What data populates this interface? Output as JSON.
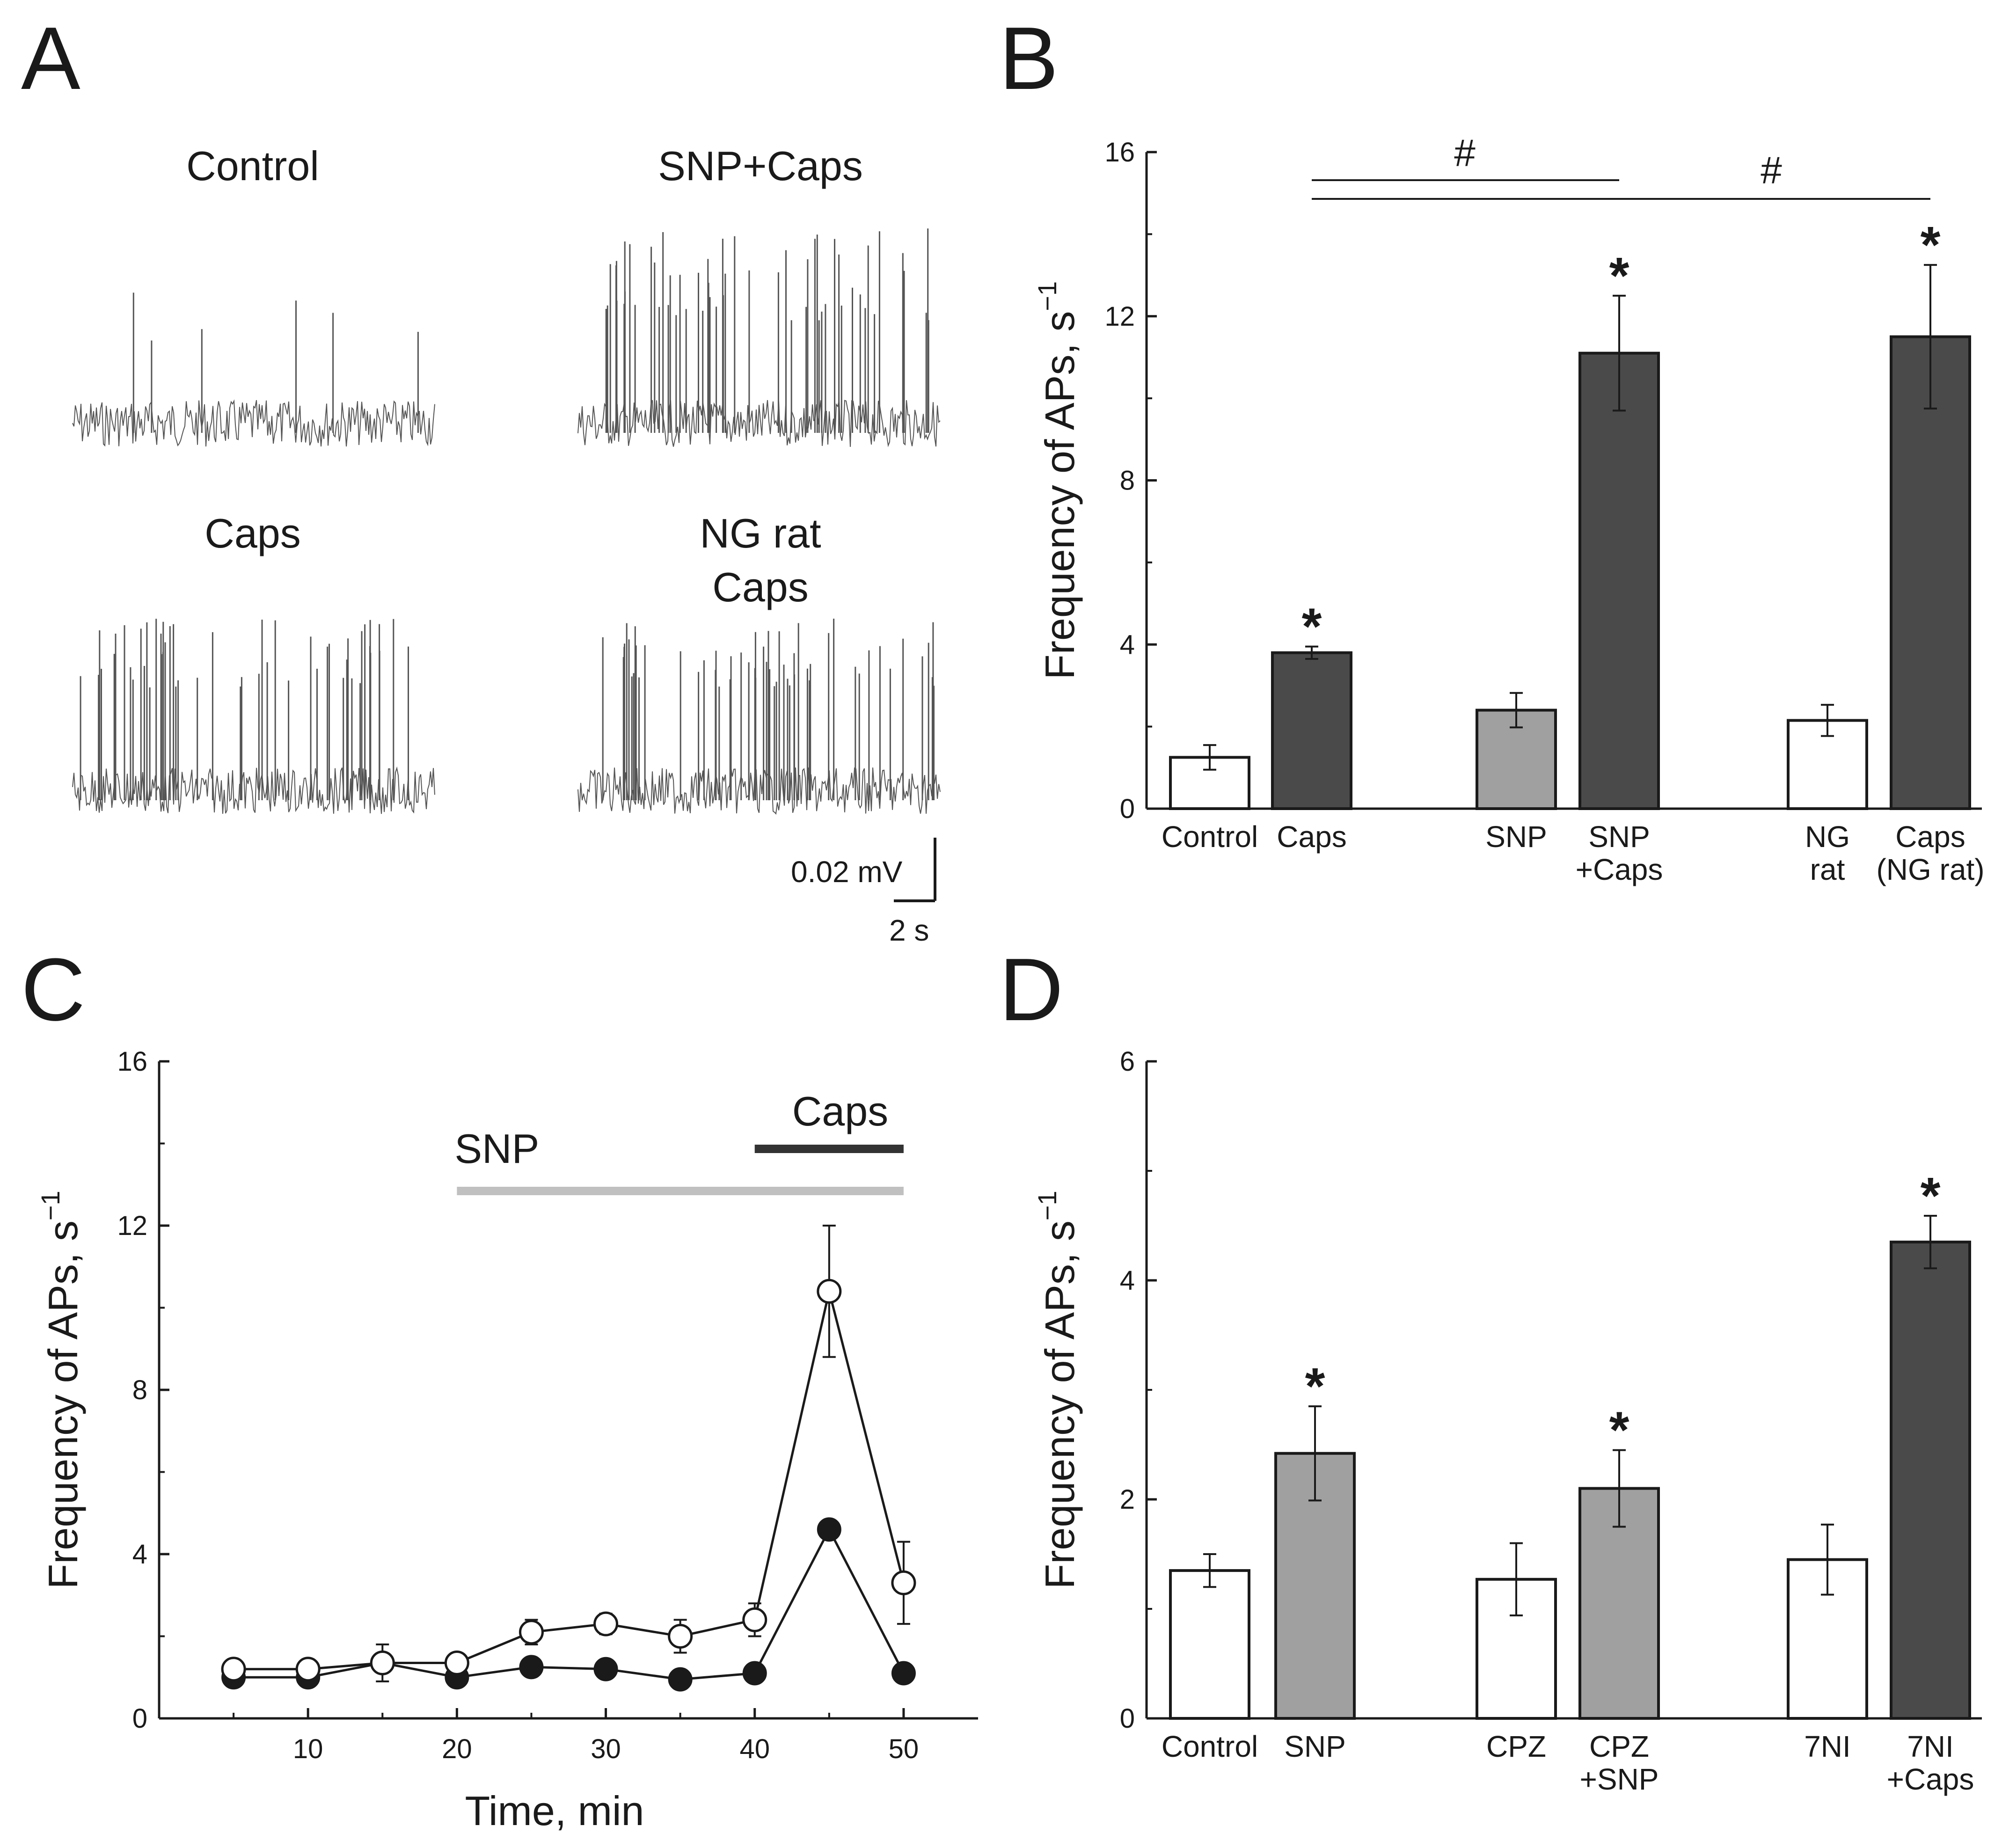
{
  "panel_a": {
    "letter": "A",
    "labels": {
      "control": "Control",
      "snp_caps": "SNP+Caps",
      "caps": "Caps",
      "ng_rat": "NG rat",
      "ng_caps": "Caps"
    },
    "scale_bar": {
      "voltage": "0.02 mV",
      "time": "2 s"
    },
    "trace_color": "#555555"
  },
  "chart_data": [
    {
      "panel": "B",
      "type": "bar",
      "ylabel": "Frequency of APs, s",
      "ylabel_sup": "−1",
      "ylim": [
        0,
        16
      ],
      "yticks": [
        "0",
        "4",
        "8",
        "12",
        "16"
      ],
      "colors": {
        "white": "#ffffff",
        "gray": "#a0a0a0",
        "dark": "#4a4a4a"
      },
      "bars": [
        {
          "label_line1": "Control",
          "label_line2": "",
          "value": 1.25,
          "err": 0.3,
          "fill": "white",
          "star": ""
        },
        {
          "label_line1": "Caps",
          "label_line2": "",
          "value": 3.8,
          "err": 0.15,
          "fill": "dark",
          "star": "*"
        },
        {
          "label_line1": "SNP",
          "label_line2": "",
          "value": 2.4,
          "err": 0.42,
          "fill": "gray",
          "star": ""
        },
        {
          "label_line1": "SNP",
          "label_line2": "+Caps",
          "value": 11.1,
          "err": 1.4,
          "fill": "dark",
          "star": "*"
        },
        {
          "label_line1": "NG",
          "label_line2": "rat",
          "value": 2.15,
          "err": 0.38,
          "fill": "white",
          "star": ""
        },
        {
          "label_line1": "Caps",
          "label_line2": "(NG rat)",
          "value": 11.5,
          "err": 1.75,
          "fill": "dark",
          "star": "*"
        }
      ],
      "significance": [
        {
          "from": 1,
          "to": 3,
          "label": "#"
        },
        {
          "from": 1,
          "to": 5,
          "label": "#"
        }
      ]
    },
    {
      "panel": "C",
      "type": "line",
      "xlabel": "Time, min",
      "ylabel": "Frequency of APs, s",
      "ylabel_sup": "−1",
      "xlim": [
        0,
        55
      ],
      "ylim": [
        0,
        16
      ],
      "xticks": [
        "10",
        "20",
        "30",
        "40",
        "50"
      ],
      "yticks": [
        "0",
        "4",
        "8",
        "12",
        "16"
      ],
      "series": [
        {
          "name": "open circles",
          "marker": "open",
          "x": [
            5,
            10,
            15,
            20,
            25,
            30,
            35,
            40,
            45,
            50
          ],
          "y": [
            1.2,
            1.2,
            1.35,
            1.35,
            2.1,
            2.3,
            2.0,
            2.4,
            10.4,
            3.3
          ],
          "err": [
            0.1,
            0.1,
            0.45,
            0.15,
            0.3,
            0.25,
            0.4,
            0.4,
            1.6,
            1.0
          ]
        },
        {
          "name": "filled circles",
          "marker": "filled",
          "x": [
            5,
            10,
            15,
            20,
            25,
            30,
            35,
            40,
            45,
            50
          ],
          "y": [
            1.0,
            1.0,
            1.35,
            1.0,
            1.25,
            1.2,
            0.95,
            1.1,
            4.6,
            1.1
          ]
        }
      ],
      "drug_bars": [
        {
          "label": "SNP",
          "start": 20,
          "end": 50,
          "color": "#c0c0c0"
        },
        {
          "label": "Caps",
          "start": 40,
          "end": 50,
          "color": "#333333"
        }
      ]
    },
    {
      "panel": "D",
      "type": "bar",
      "ylabel": "Frequency of APs, s",
      "ylabel_sup": "−1",
      "ylim": [
        0,
        6
      ],
      "yticks": [
        "0",
        "2",
        "4",
        "6"
      ],
      "colors": {
        "white": "#ffffff",
        "gray": "#a0a0a0",
        "dark": "#4a4a4a"
      },
      "bars": [
        {
          "label_line1": "Control",
          "label_line2": "",
          "value": 1.35,
          "err": 0.15,
          "fill": "white",
          "star": ""
        },
        {
          "label_line1": "SNP",
          "label_line2": "",
          "value": 2.42,
          "err": 0.43,
          "fill": "gray",
          "star": "*"
        },
        {
          "label_line1": "CPZ",
          "label_line2": "",
          "value": 1.27,
          "err": 0.33,
          "fill": "white",
          "star": ""
        },
        {
          "label_line1": "CPZ",
          "label_line2": "+SNP",
          "value": 2.1,
          "err": 0.35,
          "fill": "gray",
          "star": "*"
        },
        {
          "label_line1": "7NI",
          "label_line2": "",
          "value": 1.45,
          "err": 0.32,
          "fill": "white",
          "star": ""
        },
        {
          "label_line1": "7NI",
          "label_line2": "+Caps",
          "value": 4.35,
          "err": 0.24,
          "fill": "dark",
          "star": "*"
        }
      ]
    }
  ]
}
